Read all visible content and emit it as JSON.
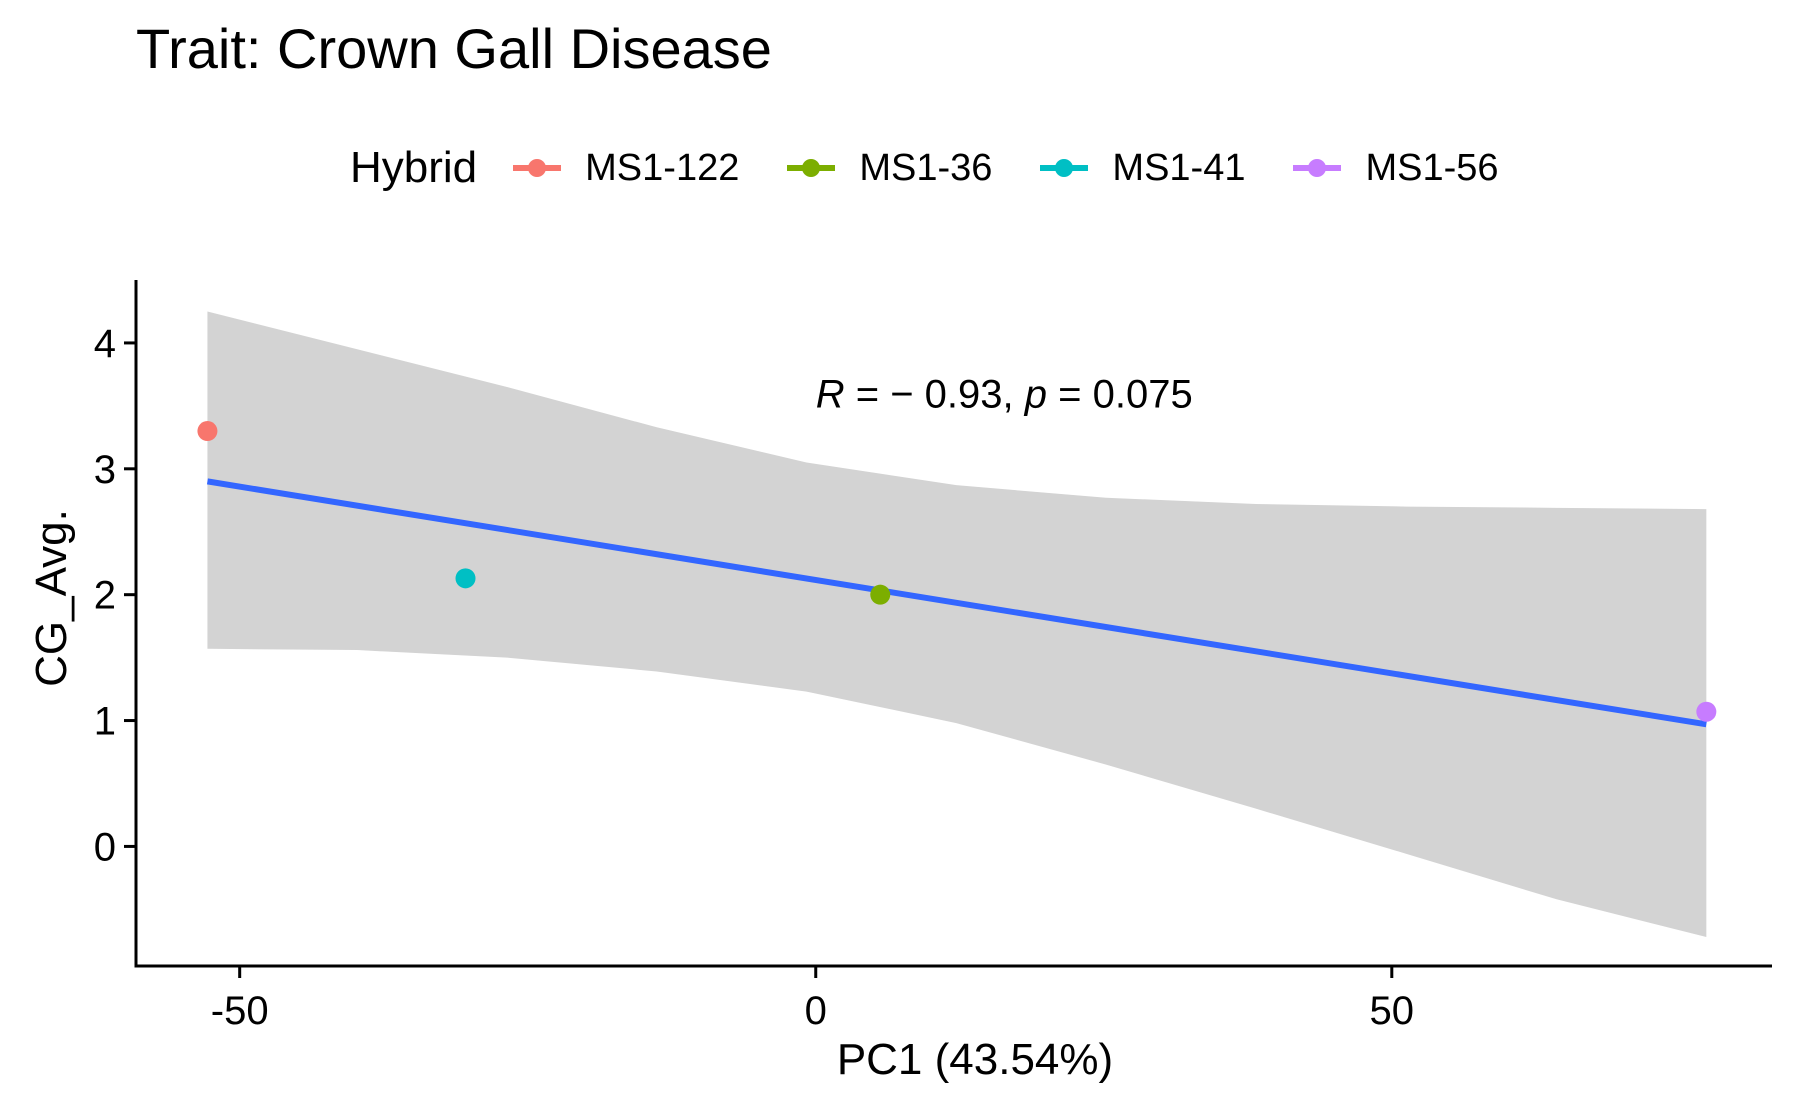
{
  "chart_data": {
    "type": "scatter",
    "title": "Trait: Crown Gall Disease",
    "xlabel": "PC1 (43.54%)",
    "ylabel": "CG_Avg.",
    "xlim": [
      -59,
      83
    ],
    "ylim": [
      -0.95,
      4.5
    ],
    "x_ticks": [
      -50,
      0,
      50
    ],
    "y_ticks": [
      0,
      1,
      2,
      3,
      4
    ],
    "legend": {
      "title": "Hybrid",
      "position": "top",
      "entries": [
        {
          "name": "MS1-122",
          "color": "#F8766D"
        },
        {
          "name": "MS1-36",
          "color": "#7CAE00"
        },
        {
          "name": "MS1-41",
          "color": "#00BFC4"
        },
        {
          "name": "MS1-56",
          "color": "#C77CFF"
        }
      ]
    },
    "series": [
      {
        "name": "MS1-122",
        "color": "#F8766D",
        "points": [
          {
            "x": -52.8,
            "y": 3.3
          }
        ]
      },
      {
        "name": "MS1-36",
        "color": "#7CAE00",
        "points": [
          {
            "x": 5.6,
            "y": 2.0
          }
        ]
      },
      {
        "name": "MS1-41",
        "color": "#00BFC4",
        "points": [
          {
            "x": -30.4,
            "y": 2.13
          }
        ]
      },
      {
        "name": "MS1-56",
        "color": "#C77CFF",
        "points": [
          {
            "x": 77.3,
            "y": 1.07
          }
        ]
      }
    ],
    "regression": {
      "color": "#3366FF",
      "band_color": "#D3D3D3",
      "line": [
        {
          "x": -52.8,
          "y": 2.9
        },
        {
          "x": 77.3,
          "y": 0.97
        }
      ],
      "band_upper": [
        {
          "x": -52.8,
          "y": 4.25
        },
        {
          "x": -39.8,
          "y": 3.95
        },
        {
          "x": -26.8,
          "y": 3.65
        },
        {
          "x": -13.8,
          "y": 3.33
        },
        {
          "x": -0.8,
          "y": 3.05
        },
        {
          "x": 12.2,
          "y": 2.87
        },
        {
          "x": 25.2,
          "y": 2.77
        },
        {
          "x": 38.2,
          "y": 2.72
        },
        {
          "x": 51.3,
          "y": 2.7
        },
        {
          "x": 64.3,
          "y": 2.69
        },
        {
          "x": 77.3,
          "y": 2.68
        }
      ],
      "band_lower": [
        {
          "x": -52.8,
          "y": 1.57
        },
        {
          "x": -39.8,
          "y": 1.56
        },
        {
          "x": -26.8,
          "y": 1.5
        },
        {
          "x": -13.8,
          "y": 1.39
        },
        {
          "x": -0.8,
          "y": 1.23
        },
        {
          "x": 12.2,
          "y": 0.98
        },
        {
          "x": 25.2,
          "y": 0.65
        },
        {
          "x": 38.2,
          "y": 0.3
        },
        {
          "x": 51.3,
          "y": -0.06
        },
        {
          "x": 64.3,
          "y": -0.42
        },
        {
          "x": 77.3,
          "y": -0.72
        }
      ]
    },
    "annotation": {
      "r_symbol": "R",
      "r_value": " = − 0.93, ",
      "p_symbol": "p",
      "p_value": " = 0.075",
      "x": 0,
      "y": 3.6
    }
  }
}
